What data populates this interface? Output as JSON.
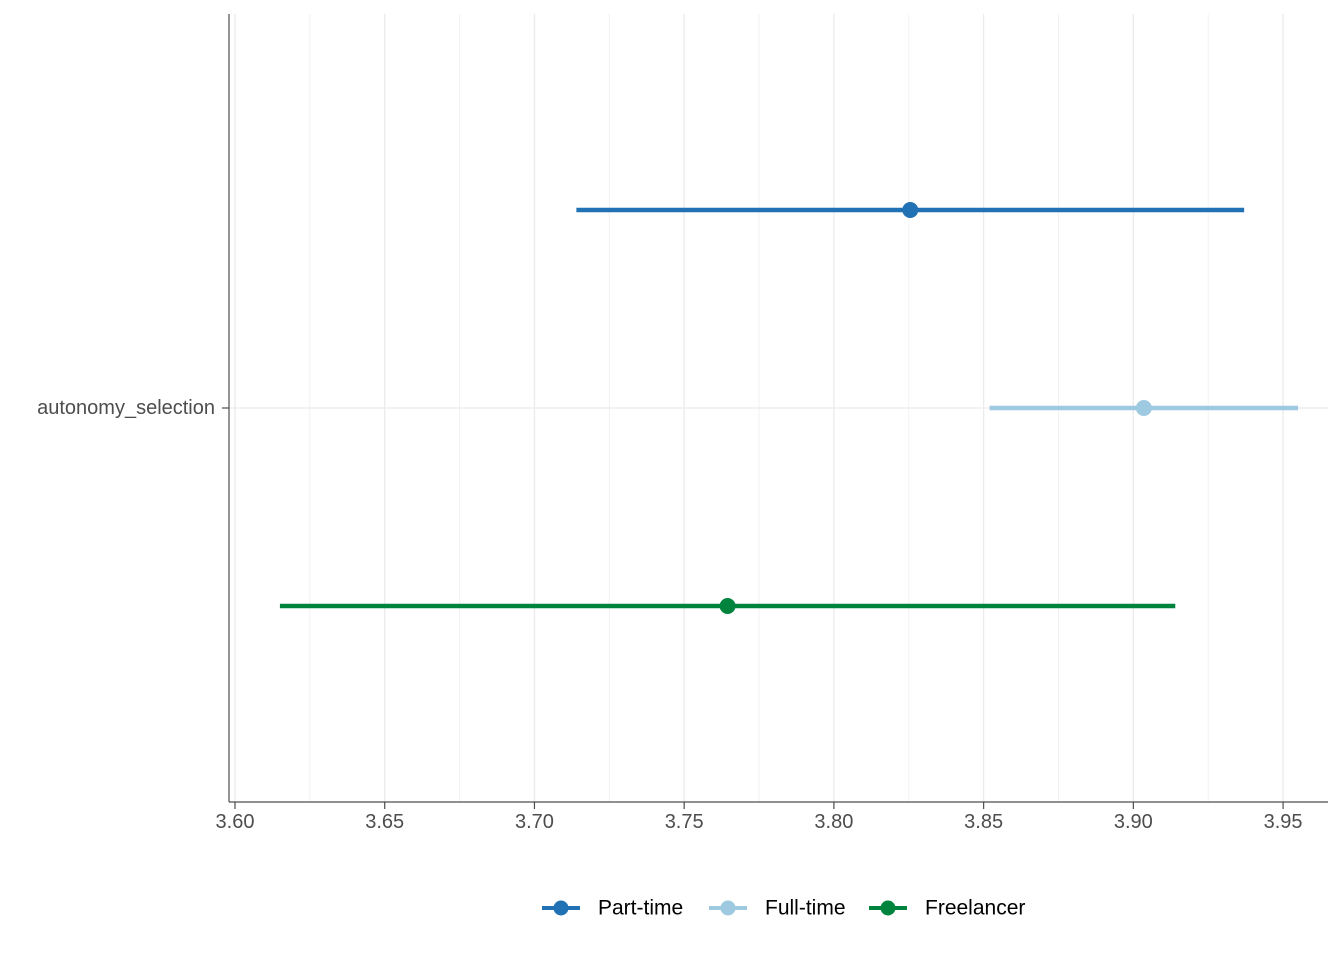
{
  "chart_data": {
    "type": "dot-whisker",
    "title": "",
    "xlabel": "",
    "ylabel": "",
    "xlim": [
      3.598,
      3.965
    ],
    "x_ticks": [
      3.6,
      3.65,
      3.7,
      3.75,
      3.8,
      3.85,
      3.9,
      3.95
    ],
    "x_tick_labels": [
      "3.60",
      "3.65",
      "3.70",
      "3.75",
      "3.80",
      "3.85",
      "3.90",
      "3.95"
    ],
    "grid": true,
    "legend_position": "bottom",
    "categories": [
      "autonomy_selection"
    ],
    "series": [
      {
        "name": "Part-time",
        "color": "#2171b5",
        "estimate": 3.8255,
        "lower": 3.714,
        "upper": 3.937
      },
      {
        "name": "Full-time",
        "color": "#9ecae1",
        "estimate": 3.9035,
        "lower": 3.852,
        "upper": 3.955
      },
      {
        "name": "Freelancer",
        "color": "#00843d",
        "estimate": 3.7645,
        "lower": 3.615,
        "upper": 3.914
      }
    ]
  }
}
